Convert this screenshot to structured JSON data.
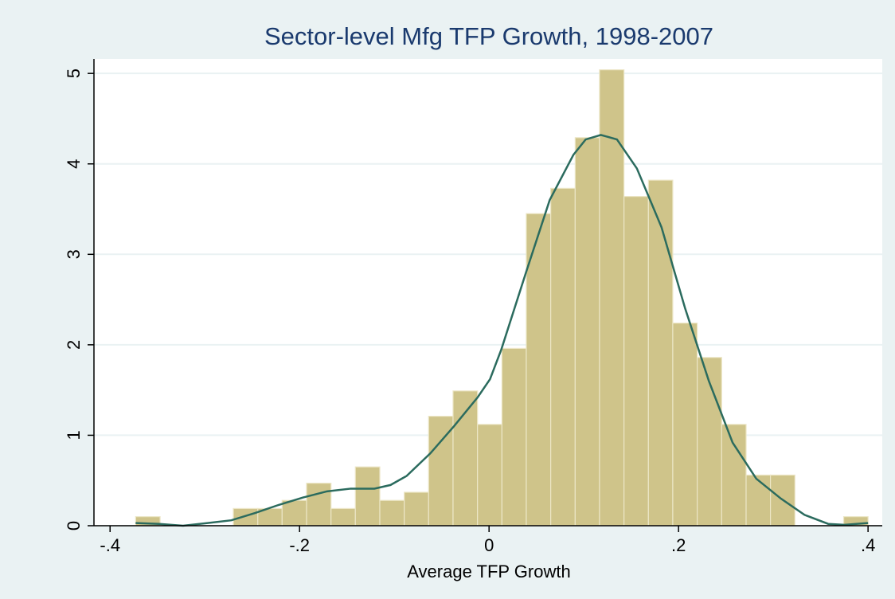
{
  "chart_data": {
    "type": "histogram",
    "title": "Sector-level Mfg TFP Growth, 1998-2007",
    "x_label": "Average TFP Growth",
    "bins": [
      -0.373,
      -0.3472,
      -0.3215,
      -0.2957,
      -0.2699,
      -0.2441,
      -0.2184,
      -0.1926,
      -0.1668,
      -0.1411,
      -0.1153,
      -0.0895,
      -0.0638,
      -0.038,
      -0.0122,
      0.0136,
      0.0393,
      0.0651,
      0.0909,
      0.1166,
      0.1424,
      0.1682,
      0.1939,
      0.2197,
      0.2455,
      0.2713,
      0.297,
      0.3228,
      0.3486,
      0.3743,
      0.4
    ],
    "values": [
      0.1,
      0,
      0,
      0,
      0.19,
      0.19,
      0.28,
      0.47,
      0.19,
      0.65,
      0.28,
      0.37,
      1.21,
      1.49,
      1.12,
      1.96,
      3.45,
      3.73,
      4.29,
      5.04,
      3.64,
      3.82,
      2.24,
      1.86,
      1.12,
      0.56,
      0.56,
      0,
      0,
      0.1
    ],
    "color": "#cfc48a",
    "curve": {
      "color": "#2b6b5e",
      "x": [
        -0.373,
        -0.348,
        -0.323,
        -0.297,
        -0.272,
        -0.247,
        -0.222,
        -0.197,
        -0.171,
        -0.146,
        -0.121,
        -0.104,
        -0.087,
        -0.062,
        -0.037,
        -0.012,
        0.001,
        0.013,
        0.039,
        0.064,
        0.089,
        0.102,
        0.118,
        0.135,
        0.156,
        0.182,
        0.207,
        0.232,
        0.257,
        0.282,
        0.308,
        0.333,
        0.358,
        0.375,
        0.4
      ],
      "y": [
        0.03,
        0.02,
        0,
        0.03,
        0.06,
        0.14,
        0.23,
        0.31,
        0.38,
        0.41,
        0.41,
        0.45,
        0.55,
        0.8,
        1.1,
        1.42,
        1.62,
        1.95,
        2.8,
        3.6,
        4.1,
        4.27,
        4.32,
        4.27,
        3.95,
        3.3,
        2.4,
        1.6,
        0.92,
        0.52,
        0.3,
        0.12,
        0.02,
        0.01,
        0.03
      ]
    },
    "xlim": [
      -0.417,
      0.415
    ],
    "ylim": [
      0,
      5.16
    ],
    "xticks": [
      {
        "value": -0.4,
        "label": "-.4"
      },
      {
        "value": -0.2,
        "label": "-.2"
      },
      0,
      {
        "value": 0.2,
        "label": ".2"
      },
      {
        "value": 0.4,
        "label": ".4"
      }
    ],
    "yticks": [
      0,
      1,
      2,
      3,
      4,
      5
    ],
    "grid": true
  }
}
